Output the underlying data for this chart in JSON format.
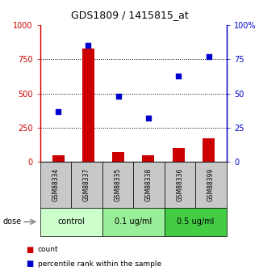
{
  "title": "GDS1809 / 1415815_at",
  "samples": [
    "GSM88334",
    "GSM88337",
    "GSM88335",
    "GSM88338",
    "GSM88336",
    "GSM88399"
  ],
  "counts": [
    50,
    830,
    70,
    50,
    100,
    175
  ],
  "percentiles": [
    37,
    85,
    48,
    32,
    63,
    77
  ],
  "groups": [
    {
      "label": "control",
      "indices": [
        0,
        1
      ]
    },
    {
      "label": "0.1 ug/ml",
      "indices": [
        2,
        3
      ]
    },
    {
      "label": "0.5 ug/ml",
      "indices": [
        4,
        5
      ]
    }
  ],
  "bar_color": "#cc0000",
  "scatter_color": "#0000cc",
  "left_ylim": [
    0,
    1000
  ],
  "right_ylim": [
    0,
    100
  ],
  "left_yticks": [
    0,
    250,
    500,
    750,
    1000
  ],
  "right_yticks": [
    0,
    25,
    50,
    75,
    100
  ],
  "grid_values": [
    250,
    500,
    750
  ],
  "bg_color": "#ffffff",
  "dose_label": "dose",
  "legend_count": "count",
  "legend_percentile": "percentile rank within the sample",
  "label_color_left": "#cc0000",
  "label_color_right": "#0000cc",
  "sample_bg_color": "#c8c8c8",
  "group_colors": [
    "#ccffcc",
    "#99ee99",
    "#44cc44"
  ],
  "title_fontsize": 9,
  "tick_fontsize": 7,
  "sample_fontsize": 5.5,
  "group_fontsize": 7,
  "legend_fontsize": 6.5
}
